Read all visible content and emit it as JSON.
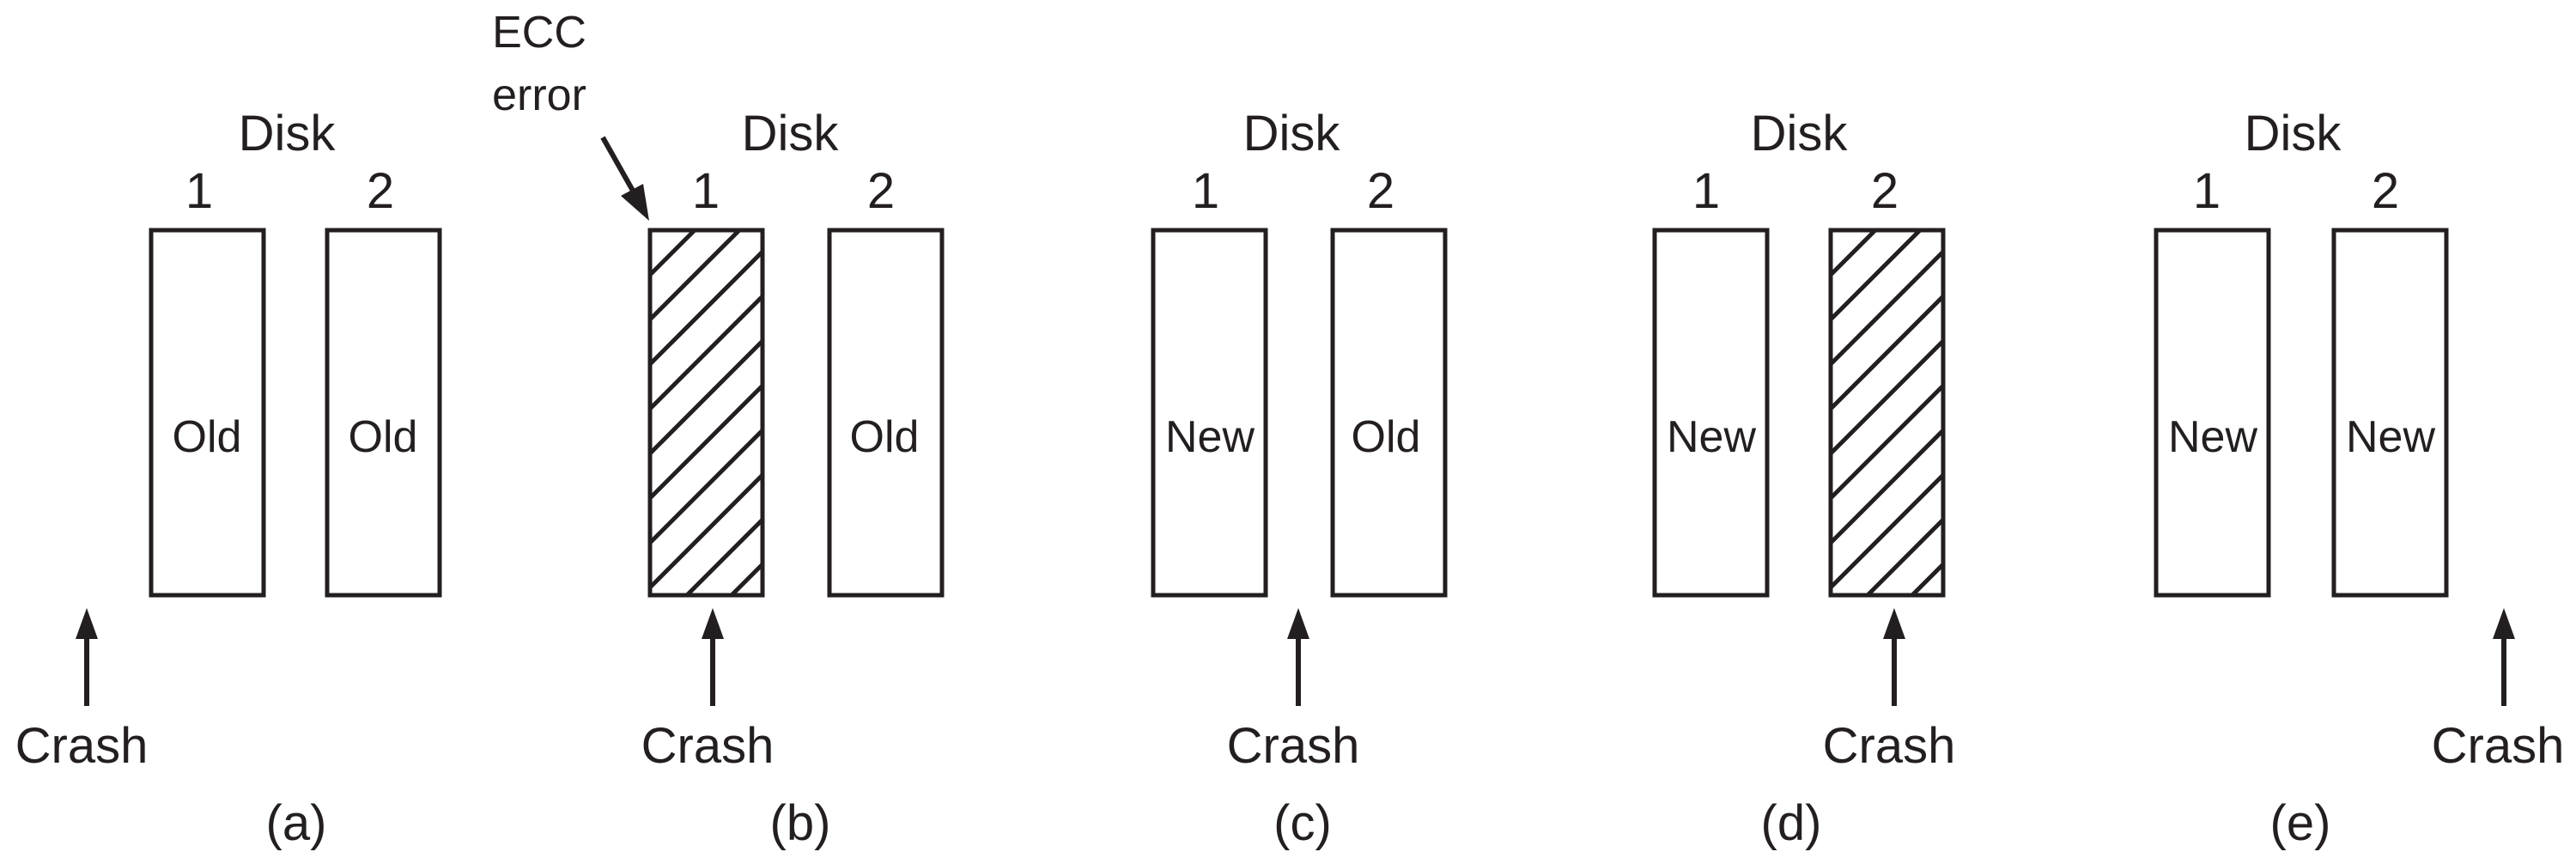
{
  "ecc_label": [
    "ECC",
    "error"
  ],
  "panels": [
    {
      "caption": "(a)",
      "disk_title": "Disk",
      "disks": [
        {
          "number": "1",
          "content": "Old",
          "ecc_error": false
        },
        {
          "number": "2",
          "content": "Old",
          "ecc_error": false
        }
      ],
      "crash_label": "Crash"
    },
    {
      "caption": "(b)",
      "disk_title": "Disk",
      "disks": [
        {
          "number": "1",
          "content": "",
          "ecc_error": true
        },
        {
          "number": "2",
          "content": "Old",
          "ecc_error": false
        }
      ],
      "crash_label": "Crash"
    },
    {
      "caption": "(c)",
      "disk_title": "Disk",
      "disks": [
        {
          "number": "1",
          "content": "New",
          "ecc_error": false
        },
        {
          "number": "2",
          "content": "Old",
          "ecc_error": false
        }
      ],
      "crash_label": "Crash"
    },
    {
      "caption": "(d)",
      "disk_title": "Disk",
      "disks": [
        {
          "number": "1",
          "content": "New",
          "ecc_error": false
        },
        {
          "number": "2",
          "content": "",
          "ecc_error": true
        }
      ],
      "crash_label": "Crash"
    },
    {
      "caption": "(e)",
      "disk_title": "Disk",
      "disks": [
        {
          "number": "1",
          "content": "New",
          "ecc_error": false
        },
        {
          "number": "2",
          "content": "New",
          "ecc_error": false
        }
      ],
      "crash_label": "Crash"
    }
  ]
}
